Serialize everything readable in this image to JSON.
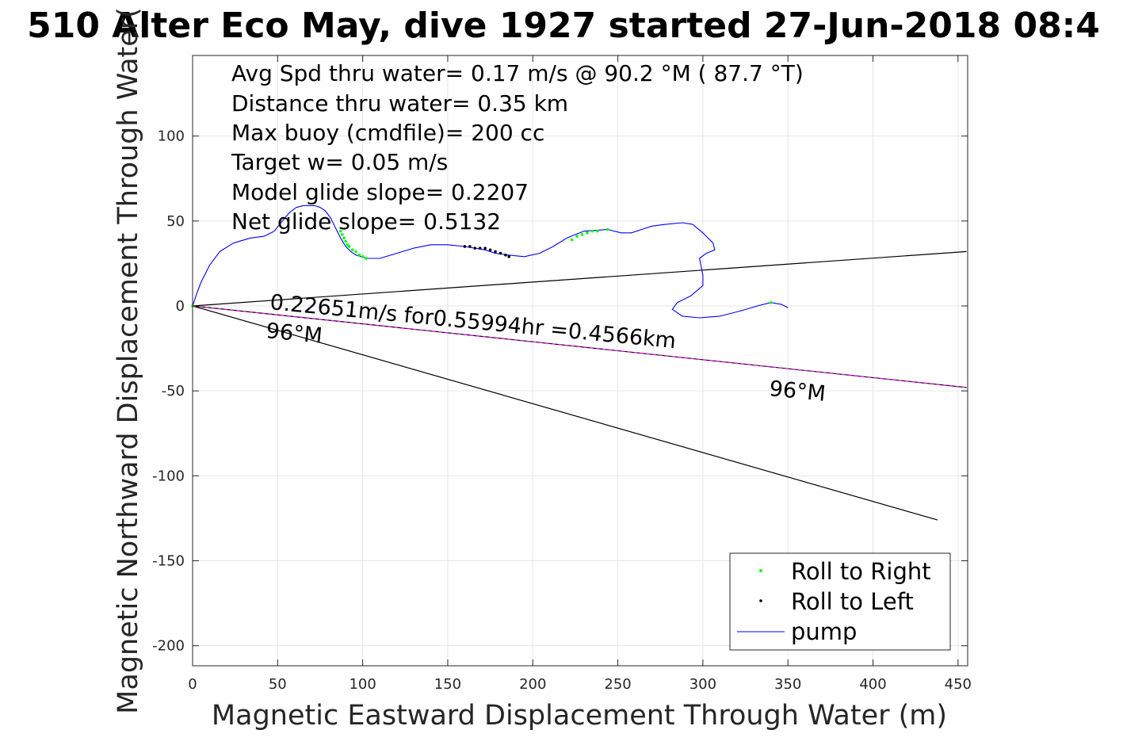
{
  "chart_data": {
    "type": "line",
    "title": "510 Alter Eco May, dive 1927 started 27-Jun-2018 08:4",
    "xlabel": "Magnetic Eastward Displacement Through Water (m)",
    "ylabel": "Magnetic Northward Displacement Through Water(",
    "xlim": [
      0,
      455
    ],
    "ylim": [
      -212,
      147
    ],
    "grid": true,
    "legend_position": "bottom-right",
    "x_ticks": [
      "0",
      "50",
      "100",
      "150",
      "200",
      "250",
      "300",
      "350",
      "400",
      "450"
    ],
    "y_ticks": [
      "100",
      "50",
      "0",
      "-50",
      "-100",
      "-150",
      "-200"
    ],
    "stats": [
      "Avg Spd thru water=  0.17 m/s @  90.2 °M ( 87.7 °T)",
      "Distance thru water=  0.35 km",
      "Max buoy (cmdfile)= 200 cc",
      "Target w= 0.05 m/s",
      "Model glide slope= 0.2207",
      "Net glide slope= 0.5132"
    ],
    "annotations": {
      "current": "0.22651m/s for0.55994hr =0.4566km",
      "heading_start": "96°M",
      "heading_end": "96°M"
    },
    "legend": [
      "Roll to Right",
      "Roll to Left",
      "pump"
    ],
    "colors": {
      "track": "#0000ff",
      "roll_right": "#00ff00",
      "roll_left": "#000000",
      "current": "#ff00ff",
      "cone": "#000000"
    },
    "series": [
      {
        "name": "pump",
        "x": [
          0,
          2,
          5,
          10,
          16,
          24,
          34,
          42,
          48,
          52,
          57,
          61,
          65,
          69,
          72,
          75,
          78,
          81,
          84,
          87,
          90,
          93,
          96,
          99,
          103,
          110,
          120,
          130,
          140,
          150,
          160,
          166,
          172,
          178,
          185,
          195,
          204,
          212,
          220,
          230,
          244,
          252,
          258,
          264,
          270,
          278,
          288,
          294,
          300,
          306,
          307,
          302,
          298,
          300,
          300,
          293,
          285,
          282,
          288,
          298,
          310,
          322,
          332,
          340,
          346,
          350
        ],
        "y": [
          0,
          6,
          14,
          24,
          32,
          37,
          40,
          41,
          44,
          49,
          55,
          58,
          59,
          59,
          59,
          58,
          56,
          52,
          46,
          40,
          35,
          32,
          30,
          29,
          28,
          28,
          31,
          34,
          36,
          36,
          35,
          34,
          33,
          31,
          30,
          29,
          31,
          35,
          40,
          44,
          45,
          43,
          43,
          45,
          47,
          48,
          49,
          48,
          43,
          37,
          33,
          31,
          28,
          18,
          12,
          6,
          2,
          -2,
          -6,
          -7,
          -6,
          -3,
          0,
          2,
          1,
          -1
        ]
      },
      {
        "name": "Roll to Right",
        "x": [
          0,
          87,
          88,
          89,
          90,
          91,
          92,
          94,
          96,
          98,
          100,
          102,
          223,
          226,
          229,
          232,
          235,
          238,
          244,
          340
        ],
        "y": [
          0,
          44,
          42,
          40,
          38,
          36,
          35,
          33,
          32,
          30,
          29,
          28,
          39,
          41,
          42,
          43,
          44,
          44,
          45,
          2
        ]
      },
      {
        "name": "Roll to Left",
        "x": [
          160,
          163,
          166,
          169,
          172,
          175,
          178,
          181,
          184,
          186
        ],
        "y": [
          35,
          35,
          34,
          34,
          34,
          33,
          32,
          31,
          30,
          29
        ]
      },
      {
        "name": "depth-averaged current",
        "x": [
          0,
          455
        ],
        "y": [
          0,
          -48
        ]
      },
      {
        "name": "cone-upper",
        "x": [
          0,
          455
        ],
        "y": [
          0,
          32
        ]
      },
      {
        "name": "cone-lower",
        "x": [
          0,
          438
        ],
        "y": [
          0,
          -126
        ]
      }
    ]
  }
}
